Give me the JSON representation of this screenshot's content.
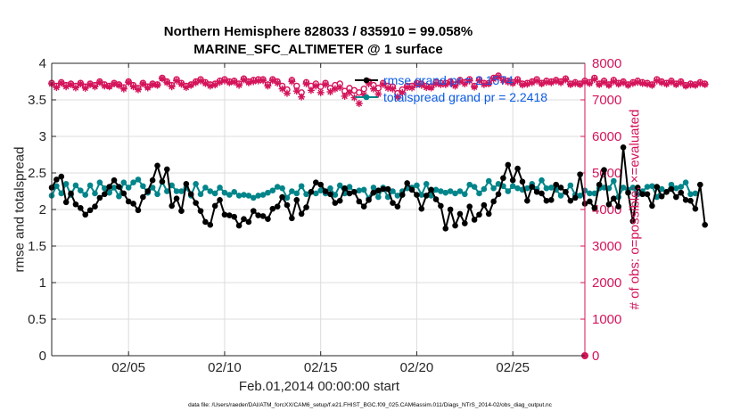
{
  "title_line1": "Northern Hemisphere 828033 / 835910 = 99.058%",
  "title_line2": "MARINE_SFC_ALTIMETER @ 1 surface",
  "footer": "data file: /Users/raeder/DAI/ATM_forcXX/CAM6_setup/f.e21.FHIST_BGC.f09_025.CAM6assim.011/Diags_NTrS_2014-02/obs_diag_output.nc",
  "colors": {
    "rmse": "#000000",
    "spread": "#00858a",
    "obs": "#d4145a",
    "legend_text": "#0b5ce6",
    "grid": "#dcdcdc",
    "axis": "#262626"
  },
  "chart_data": {
    "type": "line",
    "xlabel": "Feb.01,2014 00:00:00 start",
    "ylabel_left": "rmse and totalspread",
    "ylabel_right": "# of obs: o=possible; ×=evaluated",
    "x_unit": "day of February 2014 (6-hourly)",
    "xlim": [
      1,
      28.75
    ],
    "ylim_left": [
      0,
      4
    ],
    "ylim_right": [
      0,
      8000
    ],
    "yticks_left": [
      "0",
      "0.5",
      "1",
      "1.5",
      "2",
      "2.5",
      "3",
      "3.5",
      "4"
    ],
    "yticks_right": [
      "0",
      "1000",
      "2000",
      "3000",
      "4000",
      "5000",
      "6000",
      "7000",
      "8000"
    ],
    "xticks": [
      {
        "value": 5,
        "label": "02/05"
      },
      {
        "value": 10,
        "label": "02/10"
      },
      {
        "value": 15,
        "label": "02/15"
      },
      {
        "value": 20,
        "label": "02/20"
      },
      {
        "value": 25,
        "label": "02/25"
      }
    ],
    "grid": true,
    "legend_position": "top-right",
    "legend": [
      {
        "label": "rmse grand pr = 2.1574"
      },
      {
        "label": "totalspread grand pr = 2.2418"
      }
    ],
    "x_start": 1,
    "x_step": 0.25,
    "series": [
      {
        "axis": "left",
        "marker": "filled-circle",
        "values": [
          2.3,
          2.41,
          2.45,
          2.1,
          2.22,
          2.07,
          2.02,
          1.93,
          1.99,
          2.04,
          2.16,
          2.21,
          2.31,
          2.4,
          2.31,
          2.22,
          2.11,
          2.08,
          1.99,
          2.17,
          2.25,
          2.4,
          2.6,
          2.38,
          2.55,
          2.05,
          2.15,
          1.98,
          2.35,
          2.21,
          2.09,
          1.98,
          1.83,
          1.79,
          2.05,
          2.13,
          1.93,
          1.92,
          1.9,
          1.78,
          1.87,
          1.83,
          1.98,
          1.92,
          1.91,
          1.87,
          2.01,
          2.04,
          2.17,
          2.06,
          1.88,
          2.13,
          1.94,
          2.03,
          2.24,
          2.37,
          2.34,
          2.25,
          2.21,
          2.09,
          2.12,
          2.29,
          2.22,
          2.24,
          2.11,
          2.04,
          2.13,
          2.23,
          2.26,
          2.28,
          2.28,
          2.09,
          2.04,
          2.2,
          2.36,
          2.27,
          2.2,
          2.01,
          2.19,
          2.27,
          2.14,
          2.05,
          1.74,
          2.0,
          1.78,
          1.94,
          1.81,
          2.04,
          1.86,
          1.93,
          2.06,
          1.94,
          2.11,
          2.21,
          2.43,
          2.61,
          2.4,
          2.56,
          2.38,
          2.12,
          2.31,
          2.24,
          2.22,
          2.12,
          2.13,
          2.34,
          2.3,
          2.24,
          2.12,
          2.16,
          2.48,
          2.08,
          2.11,
          2.02,
          2.34,
          2.54,
          2.07,
          2.15,
          2.04,
          2.85,
          2.23,
          1.84,
          2.3,
          2.21,
          2.21,
          2.05,
          2.31,
          2.18,
          2.24,
          2.28,
          2.17,
          2.23,
          2.13,
          2.12,
          2.01,
          2.34,
          1.79
        ]
      },
      {
        "axis": "left",
        "marker": "filled-circle",
        "values": [
          2.19,
          2.32,
          2.22,
          2.35,
          2.2,
          2.33,
          2.26,
          2.2,
          2.33,
          2.22,
          2.37,
          2.29,
          2.23,
          2.3,
          2.18,
          2.37,
          2.3,
          2.37,
          2.41,
          2.32,
          2.23,
          2.3,
          2.21,
          2.38,
          2.25,
          2.33,
          2.25,
          2.25,
          2.3,
          2.19,
          2.35,
          2.21,
          2.3,
          2.25,
          2.22,
          2.3,
          2.23,
          2.2,
          2.24,
          2.19,
          2.2,
          2.19,
          2.16,
          2.19,
          2.2,
          2.23,
          2.26,
          2.31,
          2.29,
          2.16,
          2.25,
          2.22,
          2.32,
          2.21,
          2.24,
          2.22,
          2.26,
          2.22,
          2.29,
          2.2,
          2.33,
          2.22,
          2.31,
          2.24,
          2.26,
          2.27,
          2.15,
          2.3,
          2.17,
          2.3,
          2.17,
          2.25,
          2.19,
          2.25,
          2.29,
          2.3,
          2.33,
          2.2,
          2.35,
          2.19,
          2.27,
          2.25,
          2.23,
          2.25,
          2.22,
          2.25,
          2.21,
          2.34,
          2.31,
          2.22,
          2.28,
          2.39,
          2.29,
          2.35,
          2.32,
          2.25,
          2.32,
          2.29,
          2.27,
          2.29,
          2.35,
          2.28,
          2.4,
          2.29,
          2.3,
          2.27,
          2.19,
          2.24,
          2.33,
          2.2,
          2.19,
          2.26,
          2.22,
          2.22,
          2.29,
          2.3,
          2.29,
          2.39,
          2.17,
          2.3,
          2.27,
          2.3,
          2.21,
          2.25,
          2.31,
          2.32,
          2.17,
          2.28,
          2.24,
          2.34,
          2.29,
          2.31,
          2.37,
          2.21,
          2.22
        ]
      },
      {
        "axis": "right",
        "marker": "open-circle",
        "values": [
          7460,
          7380,
          7480,
          7400,
          7440,
          7380,
          7460,
          7360,
          7440,
          7400,
          7500,
          7420,
          7380,
          7460,
          7420,
          7340,
          7500,
          7400,
          7320,
          7460,
          7360,
          7440,
          7420,
          7600,
          7500,
          7400,
          7560,
          7460,
          7380,
          7420,
          7500,
          7560,
          7480,
          7420,
          7440,
          7520,
          7560,
          7500,
          7520,
          7440,
          7580,
          7500,
          7540,
          7560,
          7560,
          7420,
          7560,
          7500,
          7380,
          7280,
          7540,
          7380,
          7200,
          7480,
          7380,
          7440,
          7360,
          7460,
          7320,
          7400,
          7440,
          7240,
          7320,
          7260,
          7200,
          7300,
          7500,
          7400,
          7320,
          7460,
          7380,
          7360,
          7180,
          7280,
          7380,
          7380,
          7460,
          7440,
          7380,
          7360,
          7480,
          7460,
          7460,
          7500,
          7420,
          7540,
          7480,
          7560,
          7380,
          7560,
          7460,
          7460,
          7600,
          7660,
          7560,
          7520,
          7480,
          7560,
          7440,
          7460,
          7500,
          7560,
          7460,
          7520,
          7500,
          7540,
          7500,
          7580,
          7440,
          7480,
          7440,
          7520,
          7480,
          7600,
          7440,
          7520,
          7420,
          7540,
          7460,
          7500,
          7420,
          7480,
          7520,
          7480,
          7460,
          7420,
          7560,
          7500,
          7460,
          7520,
          7440,
          7500,
          7400,
          7440,
          7420,
          7480,
          7440
        ]
      },
      {
        "axis": "right",
        "marker": "star",
        "values": [
          7440,
          7340,
          7460,
          7360,
          7420,
          7330,
          7440,
          7320,
          7420,
          7360,
          7480,
          7380,
          7360,
          7440,
          7400,
          7300,
          7480,
          7360,
          7280,
          7440,
          7330,
          7420,
          7400,
          7580,
          7470,
          7360,
          7520,
          7430,
          7340,
          7400,
          7470,
          7520,
          7450,
          7380,
          7410,
          7480,
          7520,
          7470,
          7490,
          7400,
          7550,
          7470,
          7500,
          7520,
          7530,
          7380,
          7530,
          7460,
          7300,
          7180,
          7500,
          7240,
          7080,
          7440,
          7260,
          7380,
          7200,
          7420,
          7220,
          7300,
          7340,
          7100,
          7200,
          7060,
          6900,
          7140,
          7440,
          7300,
          7160,
          7420,
          7320,
          7300,
          7080,
          7200,
          7340,
          7330,
          7420,
          7400,
          7340,
          7330,
          7440,
          7420,
          7420,
          7460,
          7380,
          7500,
          7440,
          7520,
          7350,
          7520,
          7420,
          7440,
          7570,
          7630,
          7530,
          7490,
          7450,
          7520,
          7410,
          7430,
          7470,
          7520,
          7440,
          7480,
          7470,
          7510,
          7470,
          7550,
          7420,
          7450,
          7420,
          7490,
          7450,
          7560,
          7420,
          7480,
          7400,
          7500,
          7430,
          7470,
          7400,
          7450,
          7480,
          7450,
          7430,
          7400,
          7520,
          7470,
          7430,
          7490,
          7420,
          7470,
          7380,
          7410,
          7400,
          7450,
          7420
        ]
      }
    ]
  }
}
